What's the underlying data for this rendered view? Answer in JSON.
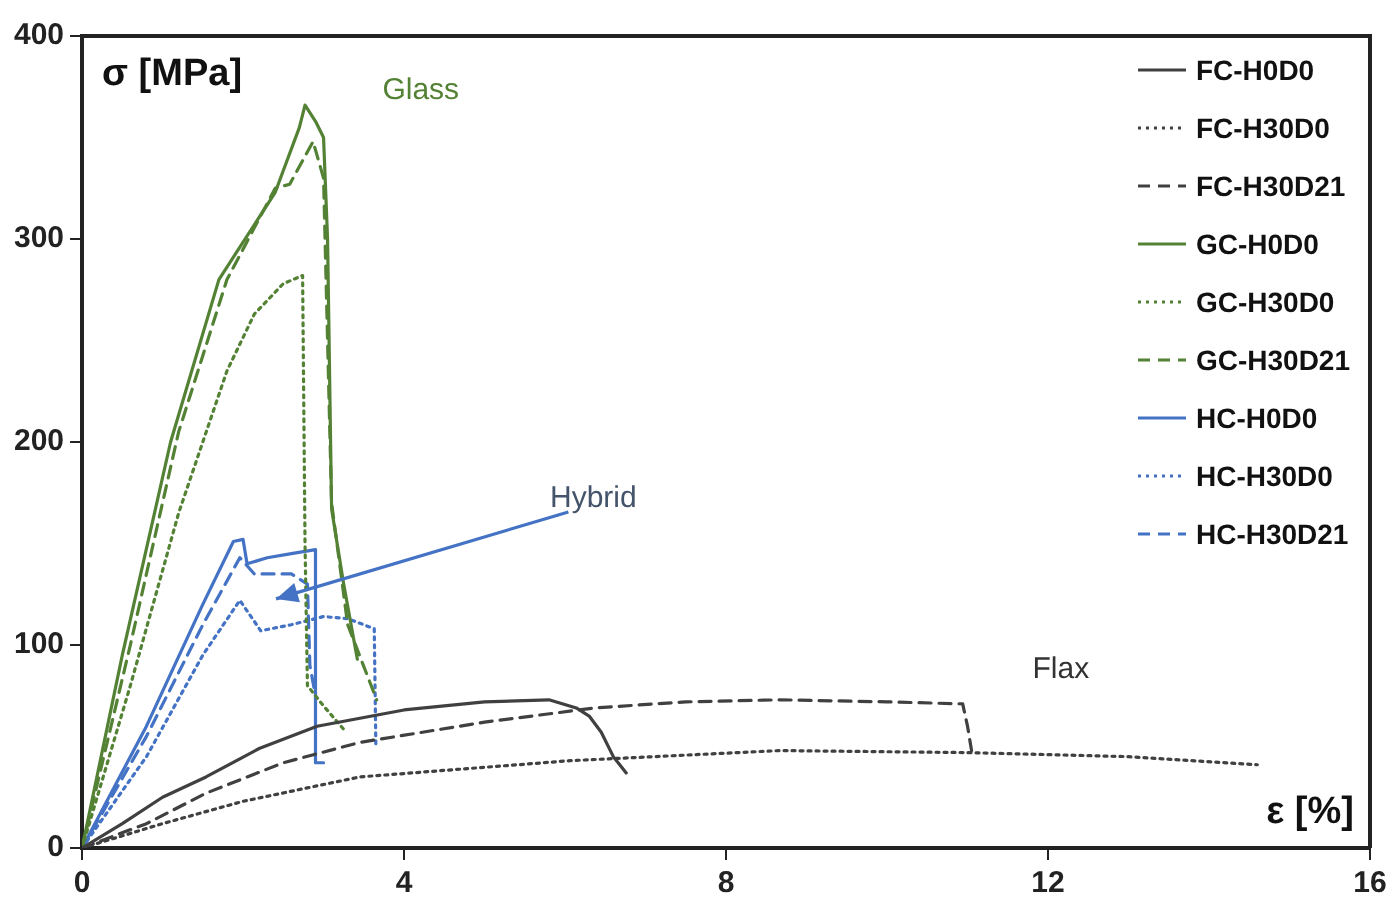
{
  "chart_data": {
    "type": "line",
    "xlabel": "ε [%]",
    "ylabel": "σ [MPa]",
    "xlim": [
      0,
      16
    ],
    "xticks": [
      0,
      4,
      8,
      12,
      16
    ],
    "ylim": [
      0,
      400
    ],
    "yticks": [
      0,
      100,
      200,
      300,
      400
    ],
    "grid": false,
    "legend": "top right",
    "marker": "none",
    "annotations": [
      "Glass",
      "Hybrid",
      "Flax"
    ],
    "series": [
      {
        "name": "FC-H0D0",
        "color": "#404040",
        "line_style": "solid",
        "x": [
          0,
          0.5,
          1,
          1.54,
          2.2,
          2.92,
          4,
          5,
          5.8,
          6.14,
          6.3,
          6.45,
          6.6,
          6.76
        ],
        "values": [
          0,
          12,
          25,
          35,
          49,
          60,
          68,
          72,
          73,
          69,
          65,
          57,
          45,
          37
        ]
      },
      {
        "name": "FC-H30D0",
        "color": "#404040",
        "line_style": "dotted",
        "x": [
          0,
          1,
          2,
          3.45,
          6.06,
          8.67,
          11,
          13,
          14.6
        ],
        "values": [
          0,
          12,
          23,
          35,
          43,
          48,
          47,
          45,
          41
        ]
      },
      {
        "name": "FC-H30D21",
        "color": "#404040",
        "line_style": "dashed",
        "x": [
          0,
          0.8,
          1.54,
          2.5,
          3.45,
          5,
          6.37,
          7.5,
          8.67,
          10,
          10.94,
          11,
          11.05
        ],
        "values": [
          0,
          12,
          27,
          42,
          52,
          62,
          69,
          72,
          73,
          72,
          71,
          60,
          48
        ]
      },
      {
        "name": "GC-H0D0",
        "color": "#548235",
        "line_style": "solid",
        "x": [
          0,
          0.5,
          1.1,
          1.7,
          2.4,
          2.7,
          2.77,
          2.9,
          3,
          3.05,
          3.1,
          3.25,
          3.42
        ],
        "values": [
          0,
          95,
          200,
          280,
          323,
          355,
          366,
          358,
          350,
          300,
          167,
          130,
          93
        ]
      },
      {
        "name": "GC-H30D0",
        "color": "#548235",
        "line_style": "dotted",
        "x": [
          0,
          0.6,
          1.2,
          1.8,
          2.14,
          2.5,
          2.74,
          2.77,
          2.8,
          3,
          3.26
        ],
        "values": [
          0,
          80,
          165,
          235,
          263,
          278,
          282,
          150,
          80,
          70,
          58
        ]
      },
      {
        "name": "GC-H30D21",
        "color": "#548235",
        "line_style": "dashed",
        "x": [
          0,
          0.6,
          1.2,
          1.8,
          2.4,
          2.58,
          2.87,
          3,
          3.1,
          3.3,
          3.66
        ],
        "values": [
          0,
          100,
          205,
          280,
          325,
          327,
          348,
          330,
          170,
          110,
          73
        ]
      },
      {
        "name": "HC-H0D0",
        "color": "#4472c4",
        "line_style": "solid",
        "x": [
          0,
          0.8,
          1.5,
          1.88,
          2,
          2.05,
          2.3,
          2.6,
          2.9,
          2.9,
          3
        ],
        "values": [
          0,
          60,
          120,
          151,
          152,
          140,
          143,
          145,
          147,
          42,
          42
        ]
      },
      {
        "name": "HC-H30D0",
        "color": "#4472c4",
        "line_style": "dotted",
        "x": [
          0,
          0.8,
          1.5,
          1.96,
          2.22,
          2.6,
          3,
          3.3,
          3.63,
          3.65
        ],
        "values": [
          0,
          45,
          95,
          122,
          107,
          110,
          114,
          113,
          108,
          50
        ]
      },
      {
        "name": "HC-H30D21",
        "color": "#4472c4",
        "line_style": "dashed",
        "x": [
          0,
          0.8,
          1.5,
          1.96,
          2.14,
          2.6,
          2.8,
          2.83,
          2.9
        ],
        "values": [
          0,
          55,
          110,
          143,
          135,
          135,
          130,
          90,
          75
        ]
      }
    ]
  }
}
